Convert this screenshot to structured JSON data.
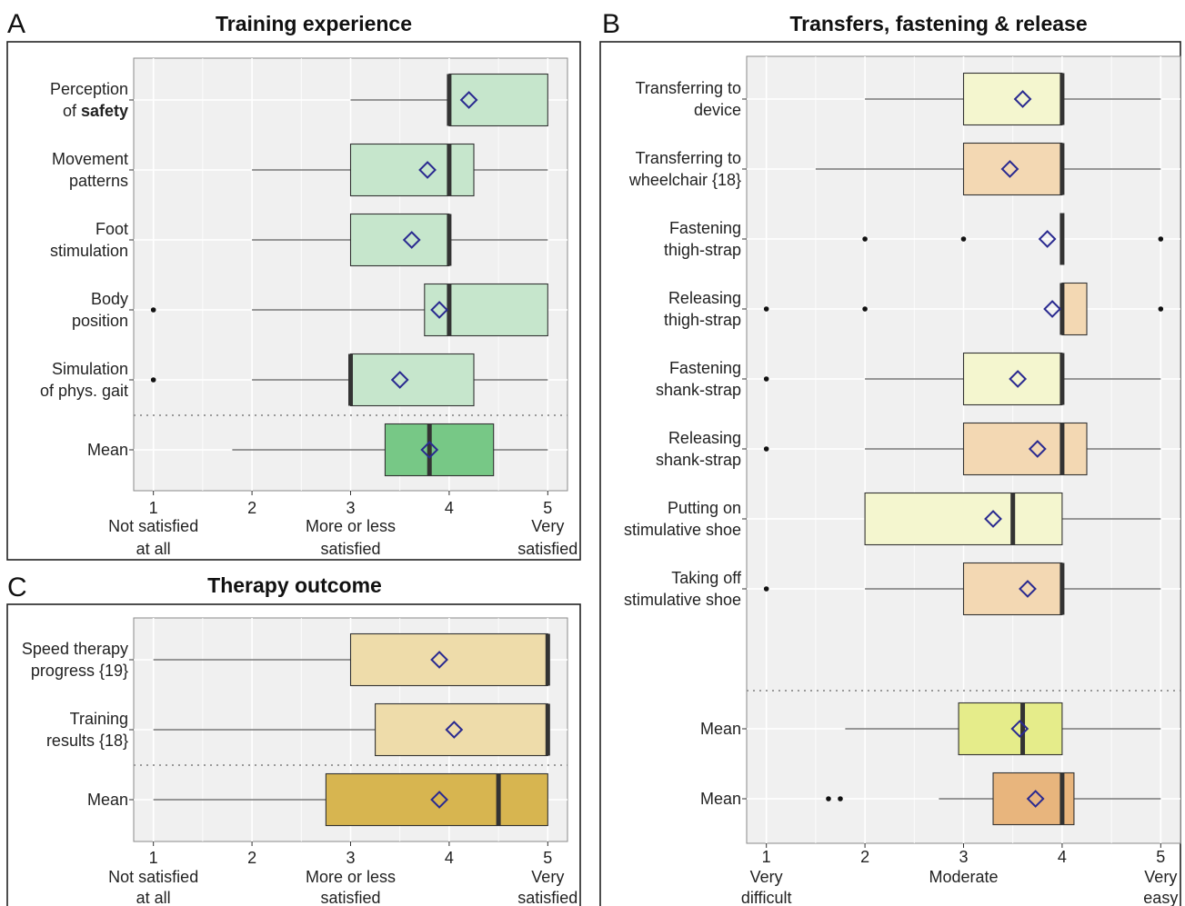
{
  "chart_data": [
    {
      "panel": "A",
      "title": "Training experience",
      "type": "box",
      "orientation": "horizontal",
      "xlim": [
        0.8,
        5.2
      ],
      "x_ticks": [
        1,
        2,
        3,
        4,
        5
      ],
      "x_tick_labels": [
        "1",
        "2",
        "3",
        "4",
        "5"
      ],
      "x_anchor_labels": [
        {
          "x": 1,
          "lines": [
            "Not satisfied",
            "at all"
          ]
        },
        {
          "x": 3,
          "lines": [
            "More or less",
            "satisfied"
          ]
        },
        {
          "x": 5,
          "lines": [
            "Very",
            "satisfied"
          ]
        }
      ],
      "separator_after_index": 4,
      "items": [
        {
          "label_lines": [
            {
              "parts": [
                {
                  "t": "Perception"
                }
              ]
            },
            {
              "parts": [
                {
                  "t": "of "
                },
                {
                  "t": "safety",
                  "bold": true
                }
              ]
            }
          ],
          "whisker_low": 3,
          "q1": 4,
          "median": 4,
          "q3": 5,
          "whisker_high": 5,
          "mean": 4.2,
          "outliers": [],
          "fill": "#c6e6cc"
        },
        {
          "label_lines": [
            {
              "parts": [
                {
                  "t": "Movement"
                }
              ]
            },
            {
              "parts": [
                {
                  "t": "patterns"
                }
              ]
            }
          ],
          "whisker_low": 2,
          "q1": 3,
          "median": 4,
          "q3": 4.25,
          "whisker_high": 5,
          "mean": 3.78,
          "outliers": [],
          "fill": "#c6e6cc"
        },
        {
          "label_lines": [
            {
              "parts": [
                {
                  "t": "Foot"
                }
              ]
            },
            {
              "parts": [
                {
                  "t": "stimulation"
                }
              ]
            }
          ],
          "whisker_low": 2,
          "q1": 3,
          "median": 4,
          "q3": 4,
          "whisker_high": 5,
          "mean": 3.62,
          "outliers": [],
          "fill": "#c6e6cc"
        },
        {
          "label_lines": [
            {
              "parts": [
                {
                  "t": "Body"
                }
              ]
            },
            {
              "parts": [
                {
                  "t": "position"
                }
              ]
            }
          ],
          "whisker_low": 2,
          "q1": 3.75,
          "median": 4,
          "q3": 5,
          "whisker_high": 5,
          "mean": 3.9,
          "outliers": [
            1
          ],
          "fill": "#c6e6cc"
        },
        {
          "label_lines": [
            {
              "parts": [
                {
                  "t": "Simulation"
                }
              ]
            },
            {
              "parts": [
                {
                  "t": "of phys. gait"
                }
              ]
            }
          ],
          "whisker_low": 2,
          "q1": 3,
          "median": 3,
          "q3": 4.25,
          "whisker_high": 5,
          "mean": 3.5,
          "outliers": [
            1
          ],
          "fill": "#c6e6cc"
        },
        {
          "label_lines": [
            {
              "parts": [
                {
                  "t": "Mean"
                }
              ]
            }
          ],
          "whisker_low": 1.8,
          "q1": 3.35,
          "median": 3.8,
          "q3": 4.45,
          "whisker_high": 5,
          "mean": 3.8,
          "outliers": [],
          "fill": "#77c886"
        }
      ]
    },
    {
      "panel": "B",
      "title": "Transfers, fastening & release",
      "type": "box",
      "orientation": "horizontal",
      "xlim": [
        0.8,
        5.2
      ],
      "x_ticks": [
        1,
        2,
        3,
        4,
        5
      ],
      "x_tick_labels": [
        "1",
        "2",
        "3",
        "4",
        "5"
      ],
      "x_anchor_labels": [
        {
          "x": 1,
          "lines": [
            "Very",
            "difficult"
          ]
        },
        {
          "x": 3,
          "lines": [
            "Moderate"
          ]
        },
        {
          "x": 5,
          "lines": [
            "Very",
            "easy"
          ]
        }
      ],
      "separator_after_index": 7,
      "items": [
        {
          "label_lines": [
            {
              "parts": [
                {
                  "t": "Transferring to"
                }
              ]
            },
            {
              "parts": [
                {
                  "t": "device"
                }
              ]
            }
          ],
          "whisker_low": 2,
          "q1": 3,
          "median": 4,
          "q3": 4,
          "whisker_high": 5,
          "mean": 3.6,
          "outliers": [],
          "fill": "#f4f6cf"
        },
        {
          "label_lines": [
            {
              "parts": [
                {
                  "t": "Transferring to"
                }
              ]
            },
            {
              "parts": [
                {
                  "t": "wheelchair {18}"
                }
              ]
            }
          ],
          "whisker_low": 1.5,
          "q1": 3,
          "median": 4,
          "q3": 4,
          "whisker_high": 5,
          "mean": 3.47,
          "outliers": [],
          "fill": "#f3d8b3"
        },
        {
          "label_lines": [
            {
              "parts": [
                {
                  "t": "Fastening"
                }
              ]
            },
            {
              "parts": [
                {
                  "t": "thigh-strap"
                }
              ]
            }
          ],
          "whisker_low": 4,
          "q1": 4,
          "median": 4,
          "q3": 4,
          "whisker_high": 4,
          "mean": 3.85,
          "outliers": [
            2,
            3,
            5
          ],
          "fill": "#f4f6cf"
        },
        {
          "label_lines": [
            {
              "parts": [
                {
                  "t": "Releasing"
                }
              ]
            },
            {
              "parts": [
                {
                  "t": "thigh-strap"
                }
              ]
            }
          ],
          "whisker_low": 4,
          "q1": 4,
          "median": 4,
          "q3": 4.25,
          "whisker_high": 4.25,
          "mean": 3.9,
          "outliers": [
            1,
            2,
            5
          ],
          "fill": "#f3d8b3"
        },
        {
          "label_lines": [
            {
              "parts": [
                {
                  "t": "Fastening"
                }
              ]
            },
            {
              "parts": [
                {
                  "t": "shank-strap"
                }
              ]
            }
          ],
          "whisker_low": 2,
          "q1": 3,
          "median": 4,
          "q3": 4,
          "whisker_high": 5,
          "mean": 3.55,
          "outliers": [
            1
          ],
          "fill": "#f4f6cf"
        },
        {
          "label_lines": [
            {
              "parts": [
                {
                  "t": "Releasing"
                }
              ]
            },
            {
              "parts": [
                {
                  "t": "shank-strap"
                }
              ]
            }
          ],
          "whisker_low": 2,
          "q1": 3,
          "median": 4,
          "q3": 4.25,
          "whisker_high": 5,
          "mean": 3.75,
          "outliers": [
            1
          ],
          "fill": "#f3d8b3"
        },
        {
          "label_lines": [
            {
              "parts": [
                {
                  "t": "Putting on"
                }
              ]
            },
            {
              "parts": [
                {
                  "t": "stimulative shoe"
                }
              ]
            }
          ],
          "whisker_low": 2,
          "q1": 2,
          "median": 3.5,
          "q3": 4,
          "whisker_high": 5,
          "mean": 3.3,
          "outliers": [],
          "fill": "#f4f6cf"
        },
        {
          "label_lines": [
            {
              "parts": [
                {
                  "t": "Taking off"
                }
              ]
            },
            {
              "parts": [
                {
                  "t": "stimulative shoe"
                }
              ]
            }
          ],
          "whisker_low": 2,
          "q1": 3,
          "median": 4,
          "q3": 4,
          "whisker_high": 5,
          "mean": 3.65,
          "outliers": [
            1
          ],
          "fill": "#f3d8b3"
        },
        {
          "label_lines": [
            {
              "parts": [
                {
                  "t": "Mean"
                }
              ]
            }
          ],
          "whisker_low": 1.8,
          "q1": 2.95,
          "median": 3.6,
          "q3": 4,
          "whisker_high": 5,
          "mean": 3.57,
          "outliers": [],
          "fill": "#e5ec8a"
        },
        {
          "label_lines": [
            {
              "parts": [
                {
                  "t": "Mean"
                }
              ]
            }
          ],
          "whisker_low": 2.75,
          "q1": 3.3,
          "median": 4,
          "q3": 4.12,
          "whisker_high": 5,
          "mean": 3.73,
          "outliers": [
            1.63,
            1.75
          ],
          "fill": "#e8b57d"
        }
      ]
    },
    {
      "panel": "C",
      "title": "Therapy outcome",
      "type": "box",
      "orientation": "horizontal",
      "xlim": [
        0.8,
        5.2
      ],
      "x_ticks": [
        1,
        2,
        3,
        4,
        5
      ],
      "x_tick_labels": [
        "1",
        "2",
        "3",
        "4",
        "5"
      ],
      "x_anchor_labels": [
        {
          "x": 1,
          "lines": [
            "Not satisfied",
            "at all"
          ]
        },
        {
          "x": 3,
          "lines": [
            "More or less",
            "satisfied"
          ]
        },
        {
          "x": 5,
          "lines": [
            "Very",
            "satisfied"
          ]
        }
      ],
      "separator_after_index": 1,
      "items": [
        {
          "label_lines": [
            {
              "parts": [
                {
                  "t": "Speed therapy"
                }
              ]
            },
            {
              "parts": [
                {
                  "t": "progress {19}"
                }
              ]
            }
          ],
          "whisker_low": 1,
          "q1": 3,
          "median": 5,
          "q3": 5,
          "whisker_high": 5,
          "mean": 3.9,
          "outliers": [],
          "fill": "#eedcaa"
        },
        {
          "label_lines": [
            {
              "parts": [
                {
                  "t": "Training"
                }
              ]
            },
            {
              "parts": [
                {
                  "t": "results {18}"
                }
              ]
            }
          ],
          "whisker_low": 1,
          "q1": 3.25,
          "median": 5,
          "q3": 5,
          "whisker_high": 5,
          "mean": 4.05,
          "outliers": [],
          "fill": "#eedcaa"
        },
        {
          "label_lines": [
            {
              "parts": [
                {
                  "t": "Mean"
                }
              ]
            }
          ],
          "whisker_low": 1,
          "q1": 2.75,
          "median": 4.5,
          "q3": 5,
          "whisker_high": 5,
          "mean": 3.9,
          "outliers": [],
          "fill": "#d7b550"
        }
      ]
    }
  ],
  "colors": {
    "plot_background": "#f0f0f0",
    "grid": "#ffffff",
    "box_border": "#333333",
    "median": "#333333",
    "mean_marker": "#2a2a90",
    "separator": "#9a9a9a"
  }
}
